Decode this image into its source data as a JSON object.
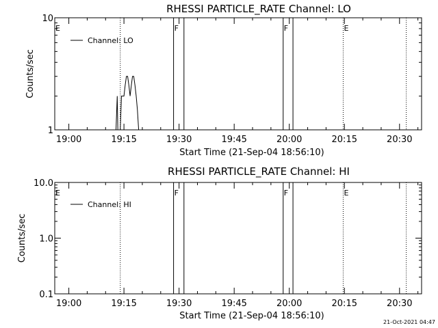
{
  "chart_data": [
    {
      "type": "line",
      "title": "RHESSI PARTICLE_RATE Channel: LO",
      "xlabel": "Start Time (21-Sep-04 18:56:10)",
      "ylabel": "Counts/sec",
      "yscale": "log",
      "ylim": [
        1,
        10
      ],
      "yticks": [
        "1",
        "10"
      ],
      "xlim": [
        "18:56:10",
        "20:36:00"
      ],
      "xticks": [
        "19:00",
        "19:15",
        "19:30",
        "19:45",
        "20:00",
        "20:15",
        "20:30"
      ],
      "legend": "top-left",
      "series": [
        {
          "name": "Channel: LO",
          "x": [
            "19:12:50",
            "19:13:10",
            "19:13:20",
            "19:13:40",
            "19:14:00",
            "19:14:20",
            "19:14:40",
            "19:15:00",
            "19:15:20",
            "19:15:40",
            "19:16:00",
            "19:16:20",
            "19:16:40",
            "19:17:00",
            "19:17:20",
            "19:17:40",
            "19:18:00",
            "19:18:20",
            "19:18:40",
            "19:19:00"
          ],
          "y": [
            1,
            2,
            1,
            1,
            1,
            2,
            2,
            2,
            2.5,
            3,
            3,
            2.5,
            2,
            2.5,
            3,
            3,
            2.5,
            2,
            1.5,
            1
          ]
        }
      ],
      "markers": [
        {
          "label": "E",
          "time": "18:56:10",
          "style": "dotted"
        },
        {
          "label": "",
          "time": "19:14:00",
          "style": "dotted"
        },
        {
          "label": "F",
          "time": "19:28:30",
          "style": "solid"
        },
        {
          "label": "",
          "time": "19:31:20",
          "style": "solid"
        },
        {
          "label": "F",
          "time": "19:58:20",
          "style": "solid"
        },
        {
          "label": "",
          "time": "20:01:00",
          "style": "solid"
        },
        {
          "label": "E",
          "time": "20:14:40",
          "style": "dotted"
        },
        {
          "label": "",
          "time": "20:31:50",
          "style": "dotted"
        }
      ]
    },
    {
      "type": "line",
      "title": "RHESSI PARTICLE_RATE Channel: HI",
      "xlabel": "Start Time (21-Sep-04 18:56:10)",
      "ylabel": "Counts/sec",
      "yscale": "log",
      "ylim": [
        0.1,
        10
      ],
      "yticks": [
        "0.1",
        "1.0",
        "10.0"
      ],
      "xlim": [
        "18:56:10",
        "20:36:00"
      ],
      "xticks": [
        "19:00",
        "19:15",
        "19:30",
        "19:45",
        "20:00",
        "20:15",
        "20:30"
      ],
      "legend": "top-left",
      "series": [
        {
          "name": "Channel: HI",
          "x": [],
          "y": []
        }
      ],
      "markers": [
        {
          "label": "E",
          "time": "18:56:10",
          "style": "dotted"
        },
        {
          "label": "",
          "time": "19:14:00",
          "style": "dotted"
        },
        {
          "label": "F",
          "time": "19:28:30",
          "style": "solid"
        },
        {
          "label": "",
          "time": "19:31:20",
          "style": "solid"
        },
        {
          "label": "F",
          "time": "19:58:20",
          "style": "solid"
        },
        {
          "label": "",
          "time": "20:01:00",
          "style": "solid"
        },
        {
          "label": "E",
          "time": "20:14:40",
          "style": "dotted"
        },
        {
          "label": "",
          "time": "20:31:50",
          "style": "dotted"
        }
      ]
    }
  ],
  "timestamp": "21-Oct-2021 04:47"
}
